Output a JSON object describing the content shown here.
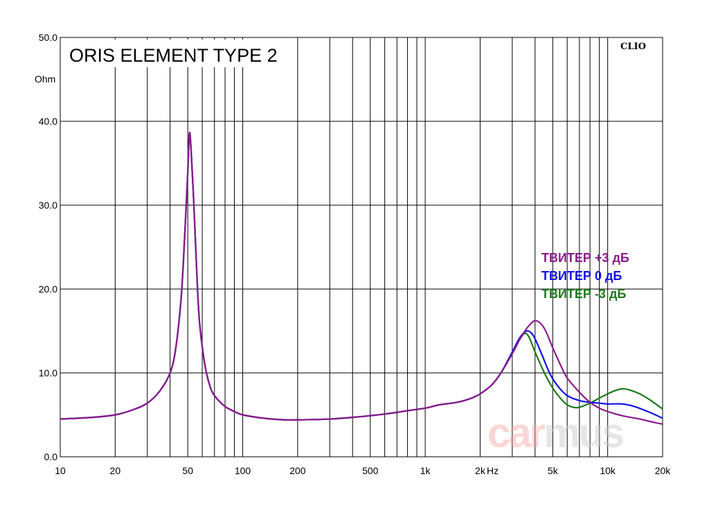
{
  "chart_data": {
    "type": "line",
    "title": "ORIS ELEMENT TYPE 2",
    "brand": "CLIO",
    "watermark": {
      "part1": "car",
      "part2": "mus"
    },
    "ylabel": "Ohm",
    "xlabel": "Hz",
    "xscale": "log",
    "xlim": [
      10,
      20000
    ],
    "ylim": [
      0,
      50
    ],
    "grid": true,
    "legend_position": "right",
    "y_ticks": [
      "0.0",
      "10.0",
      "20.0",
      "30.0",
      "40.0",
      "50.0"
    ],
    "x_ticks": [
      {
        "value": 10,
        "label": "10"
      },
      {
        "value": 20,
        "label": "20"
      },
      {
        "value": 50,
        "label": "50"
      },
      {
        "value": 100,
        "label": "100"
      },
      {
        "value": 200,
        "label": "200"
      },
      {
        "value": 500,
        "label": "500"
      },
      {
        "value": 1000,
        "label": "1k"
      },
      {
        "value": 2000,
        "label": "2k"
      },
      {
        "value": 5000,
        "label": "5k"
      },
      {
        "value": 10000,
        "label": "10k"
      },
      {
        "value": 20000,
        "label": "20k"
      }
    ],
    "series": [
      {
        "name": "ТВИТЕР -3 дБ",
        "color": "#1a7a1a",
        "points": [
          [
            10,
            4.5
          ],
          [
            15,
            4.7
          ],
          [
            20,
            5.0
          ],
          [
            25,
            5.6
          ],
          [
            30,
            6.4
          ],
          [
            35,
            7.8
          ],
          [
            40,
            10.0
          ],
          [
            43,
            13.0
          ],
          [
            46,
            19.0
          ],
          [
            48,
            26.0
          ],
          [
            50,
            34.0
          ],
          [
            51,
            38.5
          ],
          [
            52,
            37.0
          ],
          [
            54,
            30.0
          ],
          [
            56,
            22.0
          ],
          [
            58,
            16.0
          ],
          [
            62,
            11.0
          ],
          [
            66,
            8.5
          ],
          [
            70,
            7.3
          ],
          [
            80,
            6.0
          ],
          [
            90,
            5.4
          ],
          [
            100,
            5.0
          ],
          [
            130,
            4.6
          ],
          [
            170,
            4.4
          ],
          [
            200,
            4.4
          ],
          [
            300,
            4.5
          ],
          [
            400,
            4.7
          ],
          [
            500,
            4.9
          ],
          [
            600,
            5.1
          ],
          [
            700,
            5.3
          ],
          [
            800,
            5.5
          ],
          [
            1000,
            5.8
          ],
          [
            1200,
            6.2
          ],
          [
            1500,
            6.5
          ],
          [
            1800,
            7.0
          ],
          [
            2000,
            7.5
          ],
          [
            2300,
            8.5
          ],
          [
            2600,
            10.0
          ],
          [
            3000,
            12.3
          ],
          [
            3300,
            14.0
          ],
          [
            3500,
            14.7
          ],
          [
            3700,
            14.3
          ],
          [
            4000,
            12.5
          ],
          [
            4500,
            10.0
          ],
          [
            5000,
            8.2
          ],
          [
            5500,
            7.0
          ],
          [
            6000,
            6.2
          ],
          [
            6500,
            5.9
          ],
          [
            7000,
            5.9
          ],
          [
            8000,
            6.4
          ],
          [
            9000,
            7.0
          ],
          [
            10000,
            7.5
          ],
          [
            11000,
            7.9
          ],
          [
            12000,
            8.1
          ],
          [
            13000,
            8.0
          ],
          [
            15000,
            7.5
          ],
          [
            17000,
            6.8
          ],
          [
            20000,
            5.7
          ]
        ]
      },
      {
        "name": "ТВИТЕР 0 дБ",
        "color": "#1010e8",
        "points": [
          [
            10,
            4.5
          ],
          [
            15,
            4.7
          ],
          [
            20,
            5.0
          ],
          [
            25,
            5.6
          ],
          [
            30,
            6.4
          ],
          [
            35,
            7.8
          ],
          [
            40,
            10.0
          ],
          [
            43,
            13.0
          ],
          [
            46,
            19.0
          ],
          [
            48,
            26.0
          ],
          [
            50,
            34.0
          ],
          [
            51,
            38.5
          ],
          [
            52,
            37.0
          ],
          [
            54,
            30.0
          ],
          [
            56,
            22.0
          ],
          [
            58,
            16.0
          ],
          [
            62,
            11.0
          ],
          [
            66,
            8.5
          ],
          [
            70,
            7.3
          ],
          [
            80,
            6.0
          ],
          [
            90,
            5.4
          ],
          [
            100,
            5.0
          ],
          [
            130,
            4.6
          ],
          [
            170,
            4.4
          ],
          [
            200,
            4.4
          ],
          [
            300,
            4.5
          ],
          [
            400,
            4.7
          ],
          [
            500,
            4.9
          ],
          [
            600,
            5.1
          ],
          [
            700,
            5.3
          ],
          [
            800,
            5.5
          ],
          [
            1000,
            5.8
          ],
          [
            1200,
            6.2
          ],
          [
            1500,
            6.5
          ],
          [
            1800,
            7.0
          ],
          [
            2000,
            7.5
          ],
          [
            2300,
            8.5
          ],
          [
            2600,
            10.0
          ],
          [
            3000,
            12.5
          ],
          [
            3300,
            14.2
          ],
          [
            3600,
            15.0
          ],
          [
            3900,
            14.5
          ],
          [
            4300,
            12.5
          ],
          [
            4800,
            10.0
          ],
          [
            5300,
            8.5
          ],
          [
            6000,
            7.3
          ],
          [
            7000,
            6.7
          ],
          [
            8000,
            6.5
          ],
          [
            9000,
            6.4
          ],
          [
            10000,
            6.3
          ],
          [
            12000,
            6.3
          ],
          [
            14000,
            6.0
          ],
          [
            17000,
            5.3
          ],
          [
            20000,
            4.6
          ]
        ]
      },
      {
        "name": "ТВИТЕР +3 дБ",
        "color": "#8b1a8b",
        "points": [
          [
            10,
            4.5
          ],
          [
            15,
            4.7
          ],
          [
            20,
            5.0
          ],
          [
            25,
            5.6
          ],
          [
            30,
            6.4
          ],
          [
            35,
            7.8
          ],
          [
            40,
            10.0
          ],
          [
            43,
            13.0
          ],
          [
            46,
            19.0
          ],
          [
            48,
            26.0
          ],
          [
            50,
            34.0
          ],
          [
            51,
            38.5
          ],
          [
            52,
            37.0
          ],
          [
            54,
            30.0
          ],
          [
            56,
            22.0
          ],
          [
            58,
            16.0
          ],
          [
            62,
            11.0
          ],
          [
            66,
            8.5
          ],
          [
            70,
            7.3
          ],
          [
            80,
            6.0
          ],
          [
            90,
            5.4
          ],
          [
            100,
            5.0
          ],
          [
            130,
            4.6
          ],
          [
            170,
            4.4
          ],
          [
            200,
            4.4
          ],
          [
            300,
            4.5
          ],
          [
            400,
            4.7
          ],
          [
            500,
            4.9
          ],
          [
            600,
            5.1
          ],
          [
            700,
            5.3
          ],
          [
            800,
            5.5
          ],
          [
            1000,
            5.8
          ],
          [
            1200,
            6.2
          ],
          [
            1500,
            6.5
          ],
          [
            1800,
            7.0
          ],
          [
            2000,
            7.5
          ],
          [
            2300,
            8.5
          ],
          [
            2600,
            10.0
          ],
          [
            3000,
            12.3
          ],
          [
            3400,
            14.5
          ],
          [
            3800,
            15.9
          ],
          [
            4100,
            16.2
          ],
          [
            4500,
            15.3
          ],
          [
            5000,
            13.0
          ],
          [
            5500,
            11.0
          ],
          [
            6000,
            9.4
          ],
          [
            7000,
            7.7
          ],
          [
            8000,
            6.5
          ],
          [
            9000,
            5.8
          ],
          [
            10000,
            5.4
          ],
          [
            12000,
            4.9
          ],
          [
            15000,
            4.5
          ],
          [
            18000,
            4.1
          ],
          [
            20000,
            3.9
          ]
        ]
      }
    ]
  }
}
